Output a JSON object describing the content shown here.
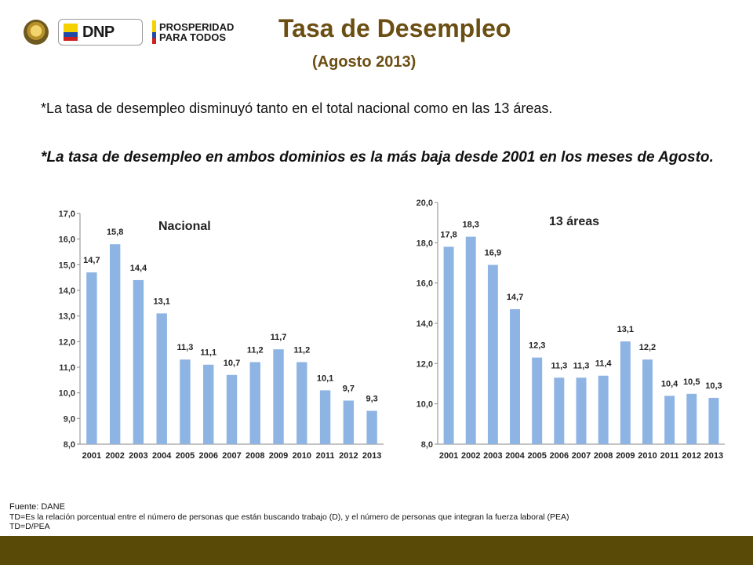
{
  "header": {
    "title": "Tasa de Desempleo",
    "subtitle": "(Agosto 2013)",
    "logos": {
      "dnp_text": "DNP",
      "prosperidad_line1": "PROSPERIDAD",
      "prosperidad_line2": "PARA TODOS"
    }
  },
  "bullets": {
    "b1": "*La tasa de desempleo disminuyó tanto en el total nacional como en las 13 áreas.",
    "b2": "*La tasa de desempleo en ambos dominios es la más baja desde 2001 en los meses de Agosto."
  },
  "chart_data": [
    {
      "type": "bar",
      "title": "Nacional",
      "categories": [
        "2001",
        "2002",
        "2003",
        "2004",
        "2005",
        "2006",
        "2007",
        "2008",
        "2009",
        "2010",
        "2011",
        "2012",
        "2013"
      ],
      "values": [
        14.7,
        15.8,
        14.4,
        13.1,
        11.3,
        11.1,
        10.7,
        11.2,
        11.7,
        11.2,
        10.1,
        9.7,
        9.3
      ],
      "data_labels": [
        "14,7",
        "15,8",
        "14,4",
        "13,1",
        "11,3",
        "11,1",
        "10,7",
        "11,2",
        "11,7",
        "11,2",
        "10,1",
        "9,7",
        "9,3"
      ],
      "ylim": [
        8.0,
        17.0
      ],
      "yticks": [
        8.0,
        9.0,
        10.0,
        11.0,
        12.0,
        13.0,
        14.0,
        15.0,
        16.0,
        17.0
      ],
      "ytick_labels": [
        "8,0",
        "9,0",
        "10,0",
        "11,0",
        "12,0",
        "13,0",
        "14,0",
        "15,0",
        "16,0",
        "17,0"
      ],
      "bar_color": "#8eb4e3",
      "grid": false
    },
    {
      "type": "bar",
      "title": "13 áreas",
      "categories": [
        "2001",
        "2002",
        "2003",
        "2004",
        "2005",
        "2006",
        "2007",
        "2008",
        "2009",
        "2010",
        "2011",
        "2012",
        "2013"
      ],
      "values": [
        17.8,
        18.3,
        16.9,
        14.7,
        12.3,
        11.3,
        11.3,
        11.4,
        13.1,
        12.2,
        10.4,
        10.5,
        10.3
      ],
      "data_labels": [
        "17,8",
        "18,3",
        "16,9",
        "14,7",
        "12,3",
        "11,3",
        "11,3",
        "11,4",
        "13,1",
        "12,2",
        "10,4",
        "10,5",
        "10,3"
      ],
      "ylim": [
        8.0,
        20.0
      ],
      "yticks": [
        8.0,
        10.0,
        12.0,
        14.0,
        16.0,
        18.0,
        20.0
      ],
      "ytick_labels": [
        "8,0",
        "10,0",
        "12,0",
        "14,0",
        "16,0",
        "18,0",
        "20,0"
      ],
      "bar_color": "#8eb4e3",
      "grid": false
    }
  ],
  "footer": {
    "source": "Fuente: DANE",
    "note": "TD=Es la relación porcentual entre el número de personas que están buscando trabajo (D), y el número de personas que integran la fuerza laboral (PEA)",
    "formula": " TD=D/PEA"
  },
  "colors": {
    "title": "#6b4e12",
    "bottom_bar": "#5a4a07",
    "bars": "#8eb4e3"
  }
}
